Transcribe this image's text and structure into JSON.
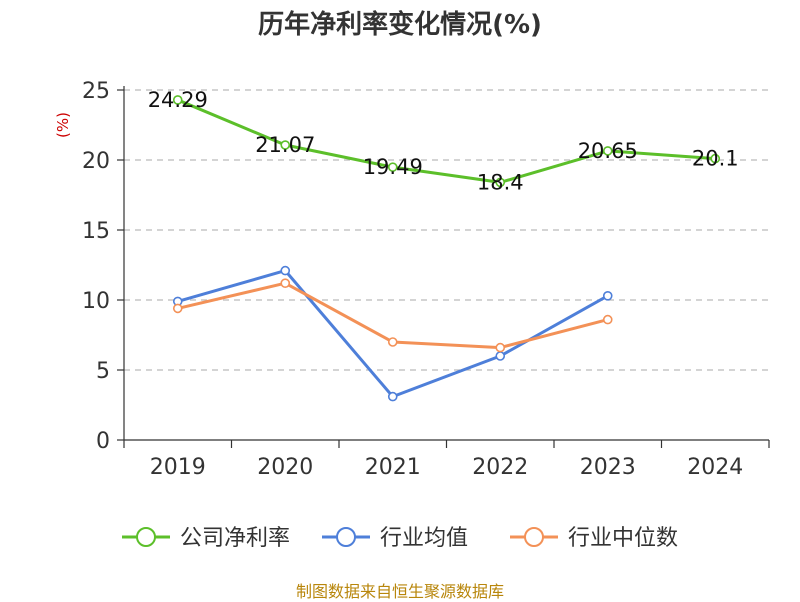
{
  "chart_data": {
    "type": "line",
    "title": "历年净利率变化情况(%)",
    "ylabel": "(%)",
    "xlabel": "",
    "categories": [
      "2019",
      "2020",
      "2021",
      "2022",
      "2023",
      "2024"
    ],
    "ylim": [
      0,
      25
    ],
    "yticks": [
      0,
      5,
      10,
      15,
      20,
      25
    ],
    "grid": true,
    "legend_position": "bottom-center",
    "series": [
      {
        "name": "公司净利率",
        "color": "#5cbf2a",
        "values": [
          24.29,
          21.07,
          19.49,
          18.4,
          20.65,
          20.1
        ],
        "labels": [
          "24.29",
          "21.07",
          "19.49",
          "18.4",
          "20.65",
          "20.1"
        ],
        "show_labels": true
      },
      {
        "name": "行业均值",
        "color": "#4e7fd9",
        "values": [
          9.9,
          12.1,
          3.1,
          6.0,
          10.3,
          null
        ],
        "show_labels": false
      },
      {
        "name": "行业中位数",
        "color": "#f39157",
        "values": [
          9.4,
          11.2,
          7.0,
          6.6,
          8.6,
          null
        ],
        "show_labels": false
      }
    ]
  },
  "source": "制图数据来自恒生聚源数据库"
}
